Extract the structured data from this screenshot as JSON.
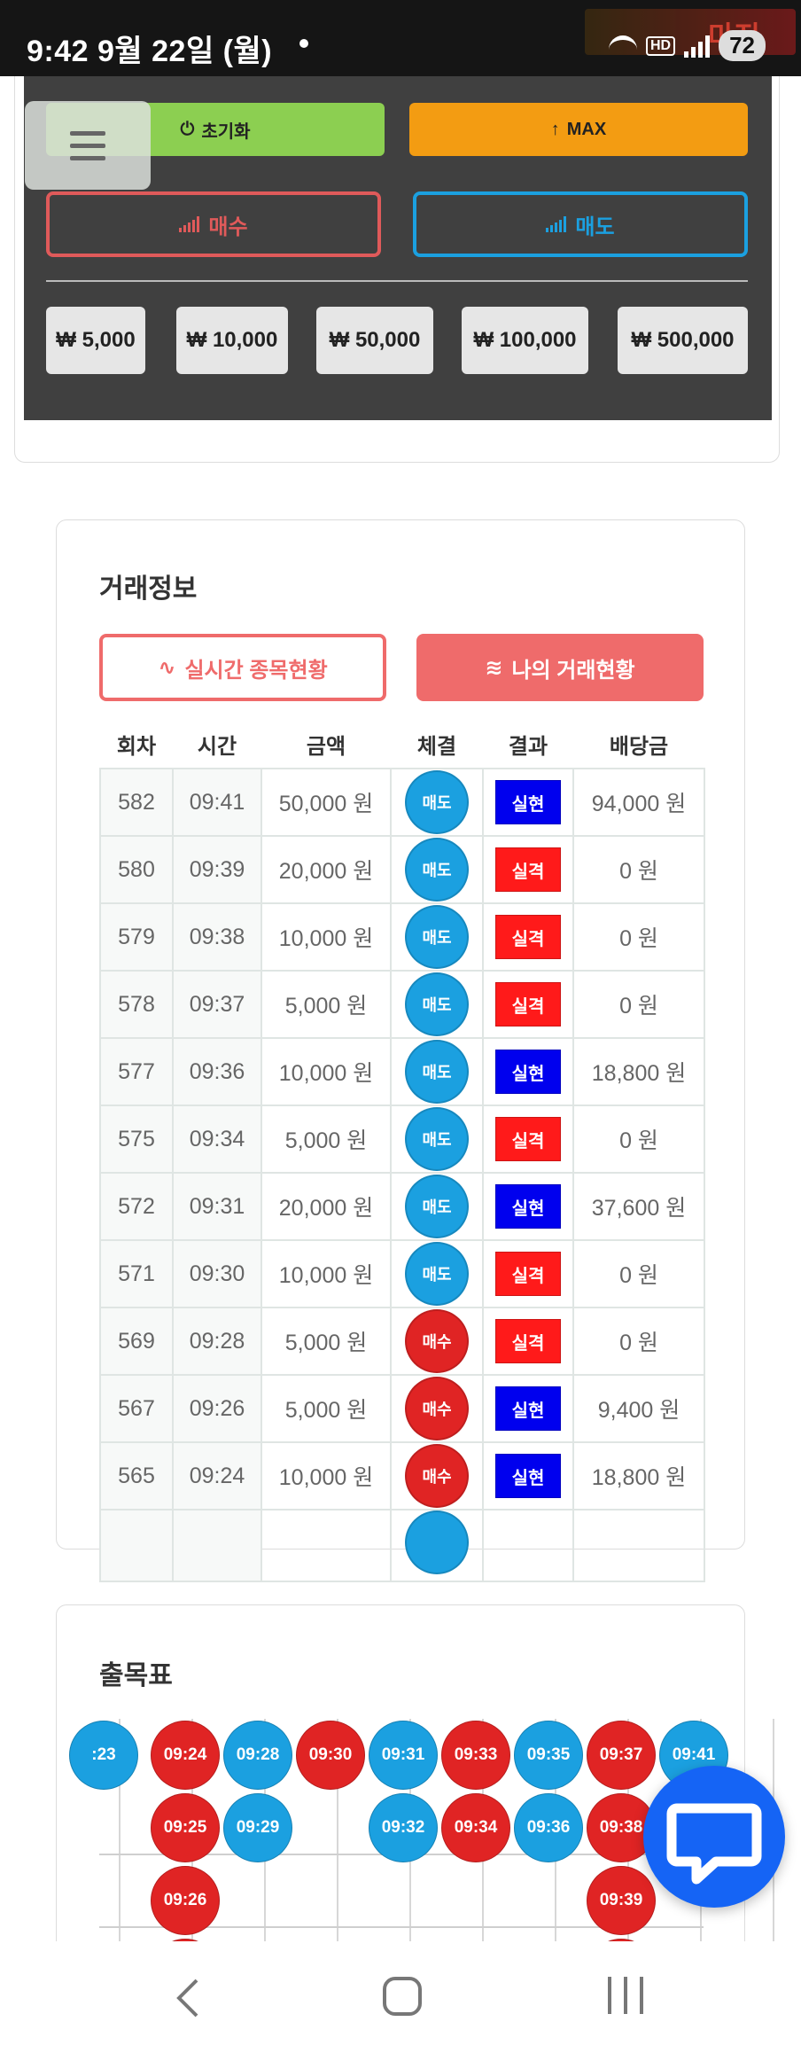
{
  "status_bar": {
    "time": "9:42  9월 22일 (월)",
    "logo_text": "마진",
    "hd_label": "HD",
    "battery": "72"
  },
  "panel": {
    "reset_label": "초기화",
    "max_label": "MAX",
    "buy_label": "매수",
    "sell_label": "매도",
    "amounts": [
      "₩ 5,000",
      "₩ 10,000",
      "₩ 50,000",
      "₩ 100,000",
      "₩ 500,000"
    ]
  },
  "trade_info": {
    "title": "거래정보",
    "tab_live": "실시간 종목현황",
    "tab_mine": "나의 거래현황",
    "columns": [
      "회차",
      "시간",
      "금액",
      "체결",
      "결과",
      "배당금"
    ],
    "rows": [
      {
        "round": "582",
        "time": "09:41",
        "amount": "50,000 원",
        "exec": "매도",
        "result": "실현",
        "payout": "94,000 원"
      },
      {
        "round": "580",
        "time": "09:39",
        "amount": "20,000 원",
        "exec": "매도",
        "result": "실격",
        "payout": "0 원"
      },
      {
        "round": "579",
        "time": "09:38",
        "amount": "10,000 원",
        "exec": "매도",
        "result": "실격",
        "payout": "0 원"
      },
      {
        "round": "578",
        "time": "09:37",
        "amount": "5,000 원",
        "exec": "매도",
        "result": "실격",
        "payout": "0 원"
      },
      {
        "round": "577",
        "time": "09:36",
        "amount": "10,000 원",
        "exec": "매도",
        "result": "실현",
        "payout": "18,800 원"
      },
      {
        "round": "575",
        "time": "09:34",
        "amount": "5,000 원",
        "exec": "매도",
        "result": "실격",
        "payout": "0 원"
      },
      {
        "round": "572",
        "time": "09:31",
        "amount": "20,000 원",
        "exec": "매도",
        "result": "실현",
        "payout": "37,600 원"
      },
      {
        "round": "571",
        "time": "09:30",
        "amount": "10,000 원",
        "exec": "매도",
        "result": "실격",
        "payout": "0 원"
      },
      {
        "round": "569",
        "time": "09:28",
        "amount": "5,000 원",
        "exec": "매수",
        "result": "실격",
        "payout": "0 원"
      },
      {
        "round": "567",
        "time": "09:26",
        "amount": "5,000 원",
        "exec": "매수",
        "result": "실현",
        "payout": "9,400 원"
      },
      {
        "round": "565",
        "time": "09:24",
        "amount": "10,000 원",
        "exec": "매수",
        "result": "실현",
        "payout": "18,800 원"
      }
    ]
  },
  "draw_chart": {
    "title": "출목표",
    "columns": [
      [
        {
          "t": ":23",
          "c": "blue"
        }
      ],
      [
        {
          "t": "09:24",
          "c": "red"
        },
        {
          "t": "09:25",
          "c": "red"
        },
        {
          "t": "09:26",
          "c": "red"
        },
        {
          "t": "",
          "c": "red"
        }
      ],
      [
        {
          "t": "09:28",
          "c": "blue"
        },
        {
          "t": "09:29",
          "c": "blue"
        }
      ],
      [
        {
          "t": "09:30",
          "c": "red"
        }
      ],
      [
        {
          "t": "09:31",
          "c": "blue"
        },
        {
          "t": "09:32",
          "c": "blue"
        }
      ],
      [
        {
          "t": "09:33",
          "c": "red"
        },
        {
          "t": "09:34",
          "c": "red"
        }
      ],
      [
        {
          "t": "09:35",
          "c": "blue"
        },
        {
          "t": "09:36",
          "c": "blue"
        }
      ],
      [
        {
          "t": "09:37",
          "c": "red"
        },
        {
          "t": "09:38",
          "c": "red"
        },
        {
          "t": "09:39",
          "c": "red"
        },
        {
          "t": "",
          "c": "red"
        }
      ],
      [
        {
          "t": "09:41",
          "c": "blue"
        }
      ]
    ]
  },
  "colors": {
    "blue_circle": "#1ba0e0",
    "red_circle": "#e02424",
    "realized": "#0000ee",
    "disqualified": "#ff1a1a"
  }
}
